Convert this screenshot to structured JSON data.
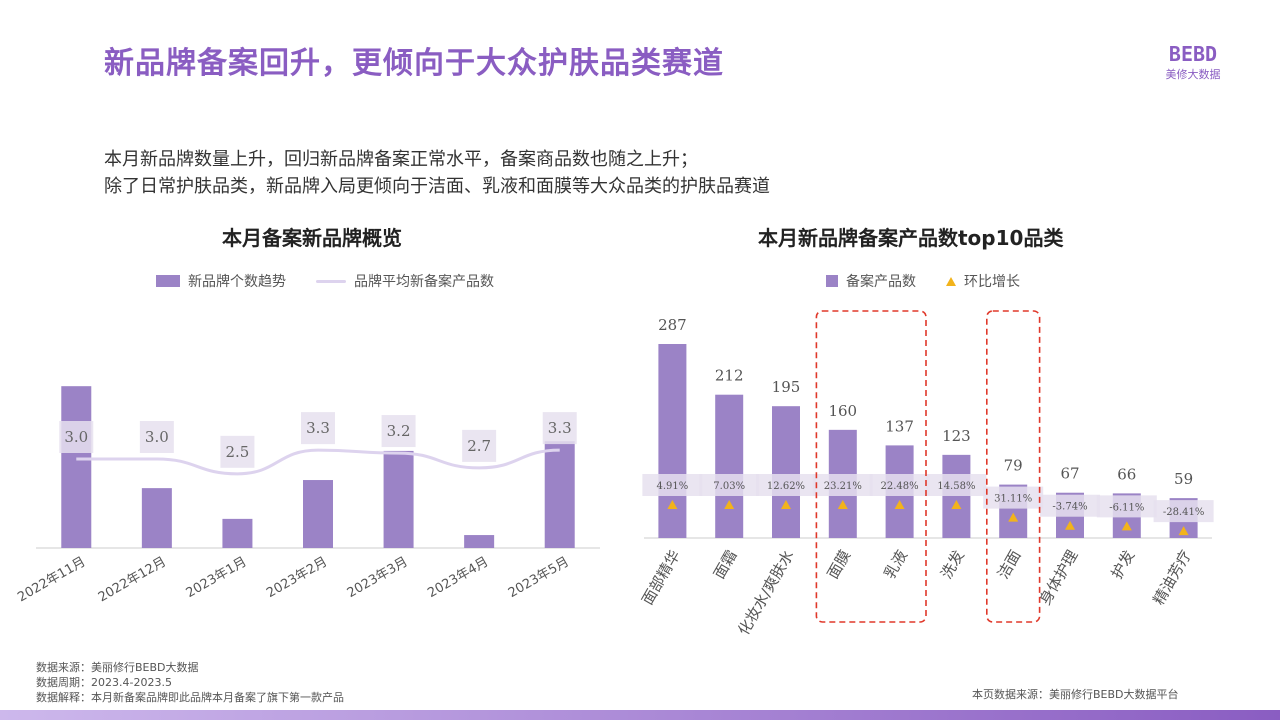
{
  "page": {
    "title": "新品牌备案回升，更倾向于大众护肤品类赛道",
    "logo_mark": "BEBD",
    "logo_sub": "美修大数据",
    "intro_lines": [
      "本月新品牌数量上升，回归新品牌备案正常水平，备案商品数也随之上升；",
      "除了日常护肤品类，新品牌入局更倾向于洁面、乳液和面膜等大众品类的护肤品赛道"
    ],
    "source_lines": [
      "数据来源：美丽修行BEBD大数据",
      "数据周期：2023.4-2023.5",
      "数据解释：本月新备案品牌即此品牌本月备案了旗下第一款产品"
    ],
    "source_right": "本页数据来源：美丽修行BEBD大数据平台"
  },
  "colors": {
    "accent": "#8a5dc2",
    "bar": "#9b83c6",
    "line": "#ddd3ee",
    "label_box": "#e6e1ee",
    "triangle": "#f2b31b",
    "highlight": "#e0382a"
  },
  "chart_data": [
    {
      "type": "bar",
      "title": "本月备案新品牌概览",
      "legend": [
        "新品牌个数趋势",
        "品牌平均新备案产品数"
      ],
      "categories": [
        "2022年11月",
        "2022年12月",
        "2023年1月",
        "2023年2月",
        "2023年3月",
        "2023年4月",
        "2023年5月"
      ],
      "series": [
        {
          "name": "新品牌个数趋势",
          "kind": "bar",
          "values": [
            100,
            37,
            18,
            42,
            60,
            8,
            66
          ]
        },
        {
          "name": "品牌平均新备案产品数",
          "kind": "line",
          "values": [
            3.0,
            3.0,
            2.5,
            3.3,
            3.2,
            2.7,
            3.3
          ]
        }
      ],
      "bar_ylim": [
        0,
        110
      ],
      "line_ylim": [
        0,
        6
      ]
    },
    {
      "type": "bar",
      "title": "本月新品牌备案产品数top10品类",
      "legend": [
        "备案产品数",
        "环比增长"
      ],
      "categories": [
        "面部精华",
        "面霜",
        "化妆水/爽肤水",
        "面膜",
        "乳液",
        "洗发",
        "洁面",
        "身体护理",
        "护发",
        "精油芳疗"
      ],
      "series": [
        {
          "name": "备案产品数",
          "kind": "bar",
          "values": [
            287,
            212,
            195,
            160,
            137,
            123,
            79,
            67,
            66,
            59
          ]
        },
        {
          "name": "环比增长",
          "kind": "marker",
          "labels": [
            "4.91%",
            "7.03%",
            "12.62%",
            "23.21%",
            "22.48%",
            "14.58%",
            "31.11%",
            "-3.74%",
            "-6.11%",
            "-28.41%"
          ]
        }
      ],
      "ylim": [
        0,
        320
      ],
      "highlighted": [
        "面膜",
        "乳液",
        "洁面"
      ]
    }
  ]
}
